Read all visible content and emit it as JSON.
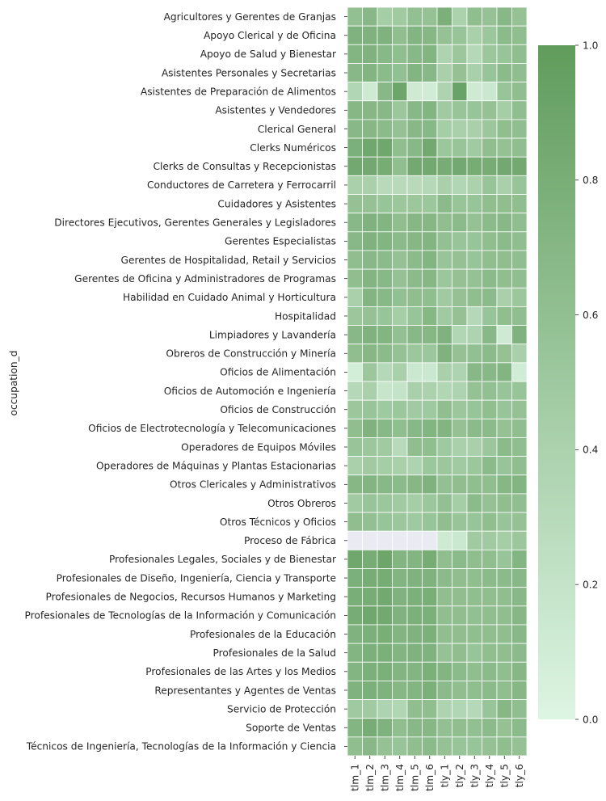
{
  "chart_data": {
    "type": "heatmap",
    "ylabel": "occupation_d",
    "xlabel": "",
    "x_categories": [
      "tlm_1",
      "tlm_2",
      "tlm_3",
      "tlm_4",
      "tlm_5",
      "tlm_6",
      "tly_1",
      "tly_2",
      "tly_3",
      "tly_4",
      "tly_5",
      "tly_6"
    ],
    "y_categories": [
      "Agricultores y Gerentes de Granjas",
      "Apoyo Clerical y de Oficina",
      "Apoyo de Salud y Bienestar",
      "Asistentes Personales y Secretarias",
      "Asistentes de Preparación de Alimentos",
      "Asistentes y Vendedores",
      "Clerical General",
      "Clerks Numéricos",
      "Clerks de Consultas y Recepcionistas",
      "Conductores de Carretera y Ferrocarril",
      "Cuidadores y Asistentes",
      "Directores Ejecutivos, Gerentes Generales y Legisladores",
      "Gerentes Especialistas",
      "Gerentes de Hospitalidad, Retail y Servicios",
      "Gerentes de Oficina y Administradores de Programas",
      "Habilidad en Cuidado Animal y Horticultura",
      "Hospitalidad",
      "Limpiadores y Lavandería",
      "Obreros de Construcción y Minería",
      "Oficios de Alimentación",
      "Oficios de Automoción e Ingeniería",
      "Oficios de Construcción",
      "Oficios de Electrotecnología y Telecomunicaciones",
      "Operadores de Equipos Móviles",
      "Operadores de Máquinas y Plantas Estacionarias",
      "Otros Clericales y Administrativos",
      "Otros Obreros",
      "Otros Técnicos y Oficios",
      "Proceso de Fábrica",
      "Profesionales Legales, Sociales y de Bienestar",
      "Profesionales de Diseño, Ingeniería, Ciencia y Transporte",
      "Profesionales de Negocios, Recursos Humanos y Marketing",
      "Profesionales de Tecnologías de la Información y Comunicación",
      "Profesionales de la Educación",
      "Profesionales de la Salud",
      "Profesionales de las Artes y los Medios",
      "Representantes y Agentes de Ventas",
      "Servicio de Protección",
      "Soporte de Ventas",
      "Técnicos de Ingeniería, Tecnologías de la Información y Ciencia"
    ],
    "values": [
      [
        0.6,
        0.68,
        0.45,
        0.48,
        0.6,
        0.58,
        0.78,
        0.4,
        0.62,
        0.58,
        0.68,
        0.58
      ],
      [
        0.75,
        0.75,
        0.75,
        0.62,
        0.72,
        0.7,
        0.58,
        0.55,
        0.42,
        0.52,
        0.65,
        0.62
      ],
      [
        0.72,
        0.75,
        0.68,
        0.62,
        0.68,
        0.72,
        0.38,
        0.52,
        0.32,
        0.52,
        0.55,
        0.62
      ],
      [
        0.68,
        0.72,
        0.65,
        0.6,
        0.72,
        0.68,
        0.42,
        0.58,
        0.42,
        0.55,
        0.65,
        0.62
      ],
      [
        0.35,
        0.12,
        0.68,
        0.9,
        0.12,
        0.1,
        0.38,
        0.92,
        0.12,
        0.15,
        0.55,
        0.62
      ],
      [
        0.7,
        0.7,
        0.68,
        0.52,
        0.68,
        0.72,
        0.48,
        0.55,
        0.55,
        0.58,
        0.45,
        0.62
      ],
      [
        0.68,
        0.7,
        0.65,
        0.58,
        0.68,
        0.68,
        0.45,
        0.42,
        0.42,
        0.52,
        0.62,
        0.62
      ],
      [
        0.78,
        0.88,
        0.88,
        0.62,
        0.68,
        0.85,
        0.52,
        0.55,
        0.48,
        0.62,
        0.58,
        0.62
      ],
      [
        0.85,
        0.85,
        0.82,
        0.62,
        0.85,
        0.85,
        0.82,
        0.85,
        0.82,
        0.82,
        0.85,
        0.85
      ],
      [
        0.42,
        0.42,
        0.3,
        0.3,
        0.3,
        0.32,
        0.42,
        0.35,
        0.4,
        0.55,
        0.42,
        0.55
      ],
      [
        0.58,
        0.58,
        0.55,
        0.52,
        0.52,
        0.52,
        0.65,
        0.55,
        0.55,
        0.62,
        0.62,
        0.62
      ],
      [
        0.68,
        0.75,
        0.72,
        0.62,
        0.7,
        0.7,
        0.62,
        0.65,
        0.58,
        0.65,
        0.68,
        0.62
      ],
      [
        0.68,
        0.75,
        0.72,
        0.65,
        0.7,
        0.72,
        0.6,
        0.55,
        0.55,
        0.62,
        0.65,
        0.62
      ],
      [
        0.62,
        0.68,
        0.65,
        0.58,
        0.65,
        0.72,
        0.55,
        0.58,
        0.55,
        0.62,
        0.62,
        0.62
      ],
      [
        0.62,
        0.72,
        0.68,
        0.58,
        0.65,
        0.7,
        0.52,
        0.58,
        0.58,
        0.65,
        0.62,
        0.62
      ],
      [
        0.42,
        0.72,
        0.68,
        0.6,
        0.62,
        0.62,
        0.48,
        0.58,
        0.62,
        0.65,
        0.42,
        0.52
      ],
      [
        0.52,
        0.58,
        0.55,
        0.45,
        0.55,
        0.7,
        0.48,
        0.58,
        0.32,
        0.55,
        0.62,
        0.62
      ],
      [
        0.68,
        0.75,
        0.72,
        0.6,
        0.68,
        0.7,
        0.75,
        0.35,
        0.38,
        0.68,
        0.12,
        0.75
      ],
      [
        0.62,
        0.7,
        0.65,
        0.58,
        0.52,
        0.52,
        0.75,
        0.58,
        0.6,
        0.65,
        0.58,
        0.42
      ],
      [
        0.08,
        0.52,
        0.32,
        0.42,
        0.15,
        0.15,
        0.42,
        0.38,
        0.68,
        0.68,
        0.72,
        0.1
      ],
      [
        0.32,
        0.42,
        0.18,
        0.2,
        0.42,
        0.4,
        0.35,
        0.38,
        0.58,
        0.6,
        0.55,
        0.55
      ],
      [
        0.52,
        0.55,
        0.5,
        0.52,
        0.48,
        0.5,
        0.62,
        0.52,
        0.55,
        0.62,
        0.55,
        0.58
      ],
      [
        0.62,
        0.75,
        0.68,
        0.62,
        0.68,
        0.72,
        0.72,
        0.58,
        0.65,
        0.65,
        0.58,
        0.62
      ],
      [
        0.55,
        0.52,
        0.48,
        0.3,
        0.62,
        0.62,
        0.5,
        0.42,
        0.42,
        0.52,
        0.65,
        0.62
      ],
      [
        0.42,
        0.48,
        0.45,
        0.42,
        0.38,
        0.52,
        0.52,
        0.48,
        0.52,
        0.65,
        0.55,
        0.62
      ],
      [
        0.7,
        0.72,
        0.68,
        0.65,
        0.7,
        0.75,
        0.6,
        0.62,
        0.62,
        0.62,
        0.7,
        0.72
      ],
      [
        0.48,
        0.55,
        0.52,
        0.48,
        0.45,
        0.52,
        0.6,
        0.45,
        0.65,
        0.58,
        0.62,
        0.62
      ],
      [
        0.62,
        0.6,
        0.55,
        0.52,
        0.5,
        0.55,
        0.62,
        0.55,
        0.55,
        0.62,
        0.55,
        0.58
      ],
      [
        null,
        null,
        null,
        null,
        null,
        null,
        0.12,
        0.15,
        0.48,
        0.48,
        0.45,
        0.52
      ],
      [
        0.88,
        0.82,
        0.9,
        0.72,
        0.72,
        0.82,
        0.62,
        0.65,
        0.62,
        0.62,
        0.55,
        0.72
      ],
      [
        0.78,
        0.82,
        0.82,
        0.72,
        0.75,
        0.75,
        0.65,
        0.62,
        0.62,
        0.65,
        0.65,
        0.68
      ],
      [
        0.8,
        0.82,
        0.85,
        0.75,
        0.78,
        0.8,
        0.62,
        0.62,
        0.62,
        0.62,
        0.62,
        0.68
      ],
      [
        0.82,
        0.88,
        0.85,
        0.75,
        0.78,
        0.78,
        0.62,
        0.62,
        0.6,
        0.62,
        0.62,
        0.7
      ],
      [
        0.75,
        0.78,
        0.8,
        0.72,
        0.75,
        0.78,
        0.62,
        0.62,
        0.62,
        0.62,
        0.62,
        0.68
      ],
      [
        0.72,
        0.78,
        0.78,
        0.72,
        0.75,
        0.75,
        0.58,
        0.62,
        0.55,
        0.62,
        0.62,
        0.65
      ],
      [
        0.72,
        0.78,
        0.78,
        0.72,
        0.72,
        0.78,
        0.72,
        0.65,
        0.62,
        0.65,
        0.62,
        0.7
      ],
      [
        0.75,
        0.78,
        0.75,
        0.7,
        0.72,
        0.78,
        0.65,
        0.62,
        0.62,
        0.65,
        0.62,
        0.7
      ],
      [
        0.5,
        0.48,
        0.38,
        0.35,
        0.62,
        0.62,
        0.38,
        0.35,
        0.32,
        0.55,
        0.7,
        0.62
      ],
      [
        0.72,
        0.82,
        0.75,
        0.62,
        0.68,
        0.7,
        0.6,
        0.62,
        0.6,
        0.65,
        0.58,
        0.65
      ],
      [
        0.62,
        0.68,
        0.58,
        0.55,
        0.62,
        0.65,
        0.58,
        0.55,
        0.55,
        0.58,
        0.62,
        0.58
      ]
    ],
    "colorbar": {
      "min": 0,
      "max": 1,
      "ticks": [
        "0.0",
        "0.2",
        "0.4",
        "0.6",
        "0.8",
        "1.0"
      ]
    },
    "colors": {
      "low": "#ddf5e3",
      "high": "#609c5c",
      "missing": "#eaeaf2",
      "cell_border": "#ffffff"
    }
  }
}
